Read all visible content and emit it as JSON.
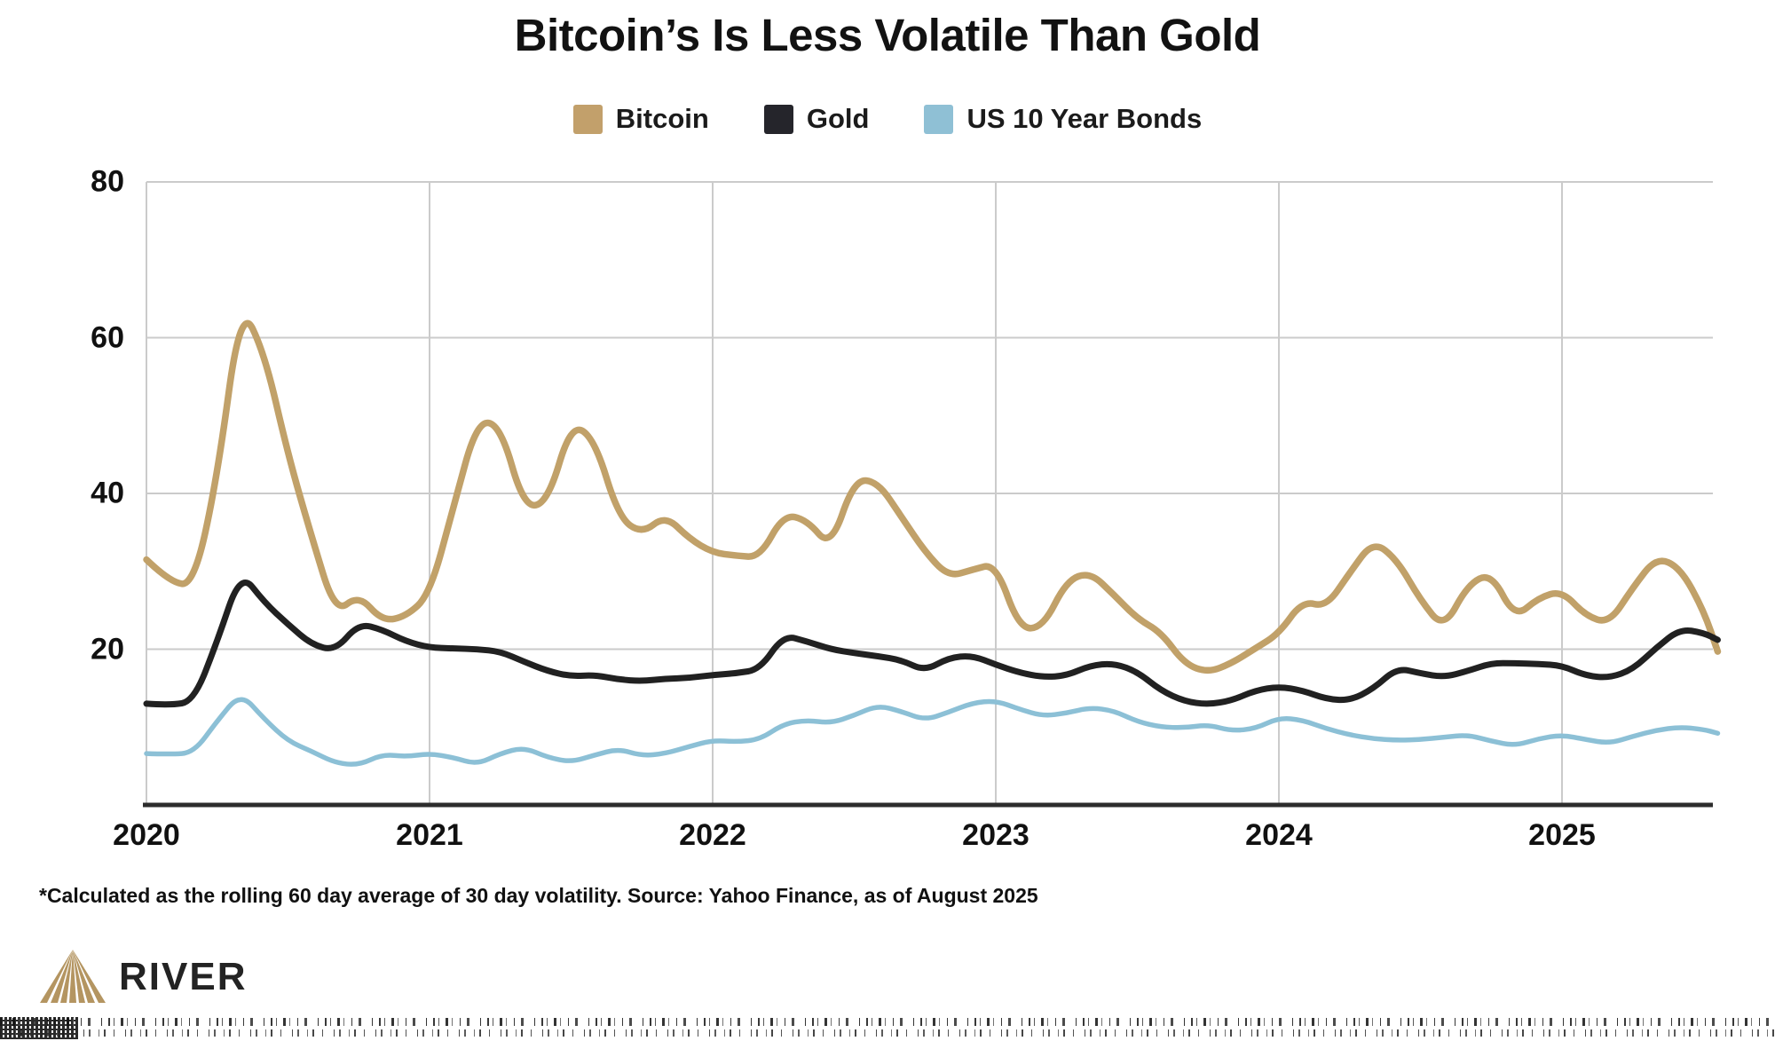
{
  "title": "Bitcoin’s Is Less Volatile Than Gold",
  "legend": [
    {
      "label": "Bitcoin",
      "color": "#C2A06B"
    },
    {
      "label": "Gold",
      "color": "#25252B"
    },
    {
      "label": "US 10 Year Bonds",
      "color": "#8FC0D5"
    }
  ],
  "footnote": "*Calculated as the rolling 60 day average of 30 day volatility. Source: Yahoo Finance, as of August 2025",
  "logo": {
    "text": "RIVER",
    "icon_color": "#B49561"
  },
  "bottom_noise": "illegible-artifact-text",
  "colors": {
    "bitcoin_line": "#C1A169",
    "gold_line": "#212121",
    "bonds_line": "#8CC0D6",
    "gridline": "#CBCBCB",
    "baseline": "#2D2D2D",
    "text": "#111111"
  },
  "chart_data": {
    "type": "line",
    "title": "Bitcoin’s Is Less Volatile Than Gold",
    "xlabel": "",
    "ylabel": "",
    "grid": "horizontal+vertical",
    "legend_position": "top",
    "ylim": [
      0,
      80
    ],
    "xlim": [
      2020,
      2025.55
    ],
    "y_ticks": [
      80,
      60,
      40,
      20
    ],
    "x_tick_years": [
      2020,
      2021,
      2022,
      2023,
      2024,
      2025
    ],
    "x_tick_labels": [
      "2020",
      "2021",
      "2022",
      "2023",
      "2024",
      "2025"
    ],
    "x": [
      2020.0,
      2020.083,
      2020.167,
      2020.25,
      2020.333,
      2020.417,
      2020.5,
      2020.583,
      2020.667,
      2020.75,
      2020.833,
      2020.917,
      2021.0,
      2021.083,
      2021.167,
      2021.25,
      2021.333,
      2021.417,
      2021.5,
      2021.583,
      2021.667,
      2021.75,
      2021.833,
      2021.917,
      2022.0,
      2022.083,
      2022.167,
      2022.25,
      2022.333,
      2022.417,
      2022.5,
      2022.583,
      2022.667,
      2022.75,
      2022.833,
      2022.917,
      2023.0,
      2023.083,
      2023.167,
      2023.25,
      2023.333,
      2023.417,
      2023.5,
      2023.583,
      2023.667,
      2023.75,
      2023.833,
      2023.917,
      2024.0,
      2024.083,
      2024.167,
      2024.25,
      2024.333,
      2024.417,
      2024.5,
      2024.583,
      2024.667,
      2024.75,
      2024.833,
      2024.917,
      2025.0,
      2025.083,
      2025.167,
      2025.25,
      2025.333,
      2025.417,
      2025.5,
      2025.55
    ],
    "series": [
      {
        "name": "Bitcoin",
        "color": "#C1A169",
        "stroke_width": 7.5,
        "values": [
          31.5,
          28.6,
          28.2,
          42,
          64.3,
          58,
          45,
          34.5,
          24.6,
          27,
          23.6,
          24.2,
          27,
          38,
          49.3,
          48.8,
          38.2,
          38.8,
          49,
          47,
          37,
          34.8,
          37.2,
          34.2,
          32.4,
          32,
          31.8,
          37.3,
          36.6,
          33,
          41.8,
          41.5,
          37,
          32.5,
          29.3,
          30.2,
          31,
          22.6,
          22.8,
          28.8,
          29.9,
          27,
          23.9,
          22.2,
          18.1,
          17,
          18.2,
          20.1,
          22,
          26.2,
          25.4,
          29.8,
          33.9,
          31.5,
          26.3,
          22.6,
          28.3,
          29.8,
          24,
          26.6,
          27.5,
          24.3,
          23.3,
          27.9,
          31.8,
          30.5,
          25,
          19.7
        ]
      },
      {
        "name": "Gold",
        "color": "#212121",
        "stroke_width": 7,
        "values": [
          13,
          12.8,
          13.3,
          21,
          29.9,
          26,
          23.2,
          20.6,
          19.8,
          23.3,
          22.5,
          21,
          20.2,
          20.1,
          20,
          19.7,
          18.4,
          17.2,
          16.5,
          16.7,
          16.1,
          15.9,
          16.2,
          16.3,
          16.7,
          16.9,
          17.4,
          21.8,
          21,
          20,
          19.5,
          19.1,
          18.6,
          17.2,
          18.9,
          19.2,
          18,
          17,
          16.4,
          16.6,
          17.9,
          18.2,
          17.1,
          14.7,
          13.3,
          12.9,
          13.4,
          14.7,
          15.2,
          14.7,
          13.6,
          13.4,
          14.9,
          17.6,
          16.9,
          16.4,
          17.2,
          18.2,
          18.2,
          18.1,
          17.9,
          16.6,
          16.3,
          17.4,
          20.2,
          22.6,
          22.1,
          21.2
        ]
      },
      {
        "name": "US 10 Year Bonds",
        "color": "#8CC0D6",
        "stroke_width": 5.5,
        "values": [
          6.6,
          6.5,
          6.7,
          10.8,
          14.4,
          11,
          8.2,
          6.9,
          5.4,
          5.1,
          6.5,
          6.2,
          6.6,
          6.1,
          5.2,
          6.6,
          7.4,
          6.1,
          5.5,
          6.4,
          7.2,
          6.3,
          6.6,
          7.5,
          8.3,
          8.1,
          8.4,
          10.4,
          10.9,
          10.5,
          11.5,
          12.8,
          12,
          10.9,
          11.9,
          13.1,
          13.4,
          12.3,
          11.4,
          11.8,
          12.5,
          12.1,
          10.7,
          10,
          9.9,
          10.3,
          9.5,
          9.8,
          11.2,
          10.9,
          9.8,
          9,
          8.5,
          8.3,
          8.4,
          8.7,
          9,
          8.2,
          7.6,
          8.5,
          9,
          8.4,
          7.9,
          8.8,
          9.6,
          10,
          9.7,
          9.2
        ]
      }
    ]
  }
}
